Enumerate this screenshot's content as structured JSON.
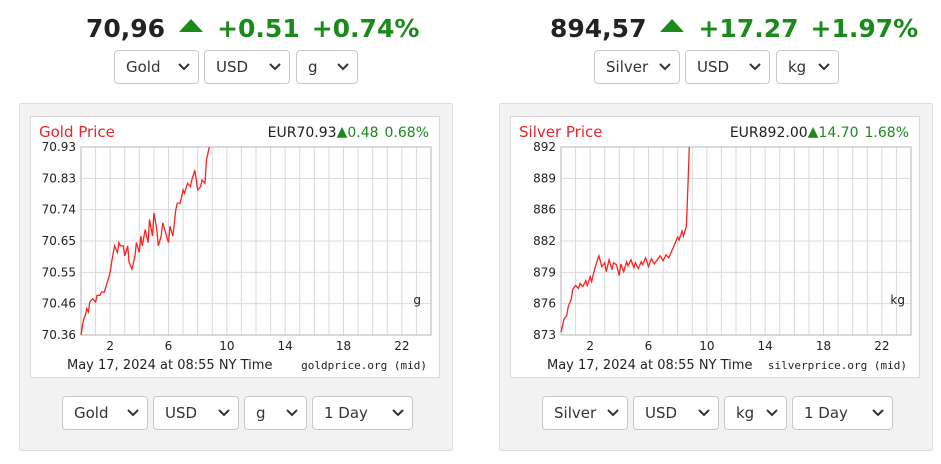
{
  "gold": {
    "ticker": {
      "price": "70,96",
      "change": "+0.51",
      "percent": "+0.74%"
    },
    "top_selects": {
      "metal": "Gold",
      "currency": "USD",
      "unit": "g"
    },
    "bottom_selects": {
      "metal": "Gold",
      "currency": "USD",
      "unit": "g",
      "period": "1 Day"
    }
  },
  "silver": {
    "ticker": {
      "price": "894,57",
      "change": "+17.27",
      "percent": "+1.97%"
    },
    "top_selects": {
      "metal": "Silver",
      "currency": "USD",
      "unit": "kg"
    },
    "bottom_selects": {
      "metal": "Silver",
      "currency": "USD",
      "unit": "kg",
      "period": "1 Day"
    }
  },
  "colors": {
    "up": "#1a8a1a",
    "line": "#ff2020",
    "title": "#e8242c",
    "grid": "#d9d9d9"
  },
  "chart_data": [
    {
      "type": "line",
      "title": "Gold Price",
      "price_label": "EUR70.93",
      "change_label": "0.48",
      "percent_label": "0.68%",
      "x_ticks": [
        2,
        6,
        10,
        14,
        18,
        22
      ],
      "y_ticks": [
        "70.93",
        "70.83",
        "70.74",
        "70.65",
        "70.55",
        "70.46",
        "70.36"
      ],
      "xlim": [
        0,
        24
      ],
      "ylim": [
        70.36,
        70.93
      ],
      "unit_label": "g",
      "footer_date": "May 17, 2024 at 08:55 NY Time",
      "footer_source": "goldprice.org (mid)",
      "series": [
        {
          "x": [
            0,
            0.1,
            0.2,
            0.3,
            0.4,
            0.5,
            0.6,
            0.8,
            1.0,
            1.1,
            1.3,
            1.4,
            1.6,
            1.8,
            2.0,
            2.1,
            2.3,
            2.5,
            2.6,
            2.7,
            2.9,
            3.0,
            3.2,
            3.3,
            3.5,
            3.7,
            3.8,
            4.0,
            4.1,
            4.2,
            4.4,
            4.6,
            4.7,
            4.9,
            5.0,
            5.2,
            5.3,
            5.5,
            5.6,
            5.8,
            6.0,
            6.1,
            6.3,
            6.5,
            6.6,
            6.8,
            7.0,
            7.1,
            7.3,
            7.5,
            7.6,
            7.8,
            8.0,
            8.2,
            8.3,
            8.5,
            8.6,
            8.8
          ],
          "y": [
            70.36,
            70.39,
            70.41,
            70.42,
            70.44,
            70.43,
            70.46,
            70.47,
            70.46,
            70.48,
            70.48,
            70.49,
            70.49,
            70.52,
            70.55,
            70.58,
            70.63,
            70.61,
            70.64,
            70.63,
            70.63,
            70.6,
            70.63,
            70.58,
            70.56,
            70.6,
            70.64,
            70.61,
            70.66,
            70.63,
            70.68,
            70.64,
            70.71,
            70.66,
            70.73,
            70.68,
            70.63,
            70.66,
            70.7,
            70.67,
            70.64,
            70.69,
            70.66,
            70.74,
            70.76,
            70.76,
            70.8,
            70.79,
            70.82,
            70.81,
            70.83,
            70.86,
            70.8,
            70.81,
            70.83,
            70.82,
            70.89,
            70.93
          ]
        }
      ]
    },
    {
      "type": "line",
      "title": "Silver Price",
      "price_label": "EUR892.00",
      "change_label": "14.70",
      "percent_label": "1.68%",
      "x_ticks": [
        2,
        6,
        10,
        14,
        18,
        22
      ],
      "y_ticks": [
        "892",
        "889",
        "886",
        "882",
        "879",
        "876",
        "873"
      ],
      "xlim": [
        0,
        24
      ],
      "ylim": [
        873,
        892
      ],
      "unit_label": "kg",
      "footer_date": "May 17, 2024 at 08:55 NY Time",
      "footer_source": "silverprice.org (mid)",
      "series": [
        {
          "x": [
            0,
            0.1,
            0.2,
            0.4,
            0.5,
            0.7,
            0.8,
            1.0,
            1.2,
            1.3,
            1.5,
            1.7,
            1.8,
            2.0,
            2.1,
            2.3,
            2.5,
            2.6,
            2.8,
            3.0,
            3.1,
            3.3,
            3.5,
            3.6,
            3.8,
            4.0,
            4.1,
            4.3,
            4.5,
            4.6,
            4.8,
            5.0,
            5.1,
            5.3,
            5.5,
            5.6,
            5.8,
            6.0,
            6.2,
            6.4,
            6.6,
            6.8,
            7.0,
            7.2,
            7.4,
            7.6,
            7.8,
            8.0,
            8.1,
            8.3,
            8.4,
            8.6,
            8.7,
            8.8
          ],
          "y": [
            873.3,
            873.9,
            874.6,
            875.0,
            875.9,
            876.6,
            877.6,
            878.0,
            877.7,
            878.2,
            877.9,
            878.5,
            878.0,
            878.9,
            878.4,
            879.6,
            880.6,
            881.0,
            879.9,
            880.3,
            879.4,
            880.6,
            879.6,
            880.3,
            880.1,
            879.0,
            880.2,
            879.4,
            880.4,
            880.0,
            880.6,
            879.8,
            880.3,
            879.7,
            880.4,
            880.1,
            880.8,
            879.9,
            880.7,
            880.2,
            880.6,
            881.0,
            880.5,
            881.1,
            880.8,
            881.5,
            882.2,
            882.9,
            882.6,
            883.5,
            883.0,
            884.0,
            888.0,
            892.0
          ]
        }
      ]
    }
  ]
}
